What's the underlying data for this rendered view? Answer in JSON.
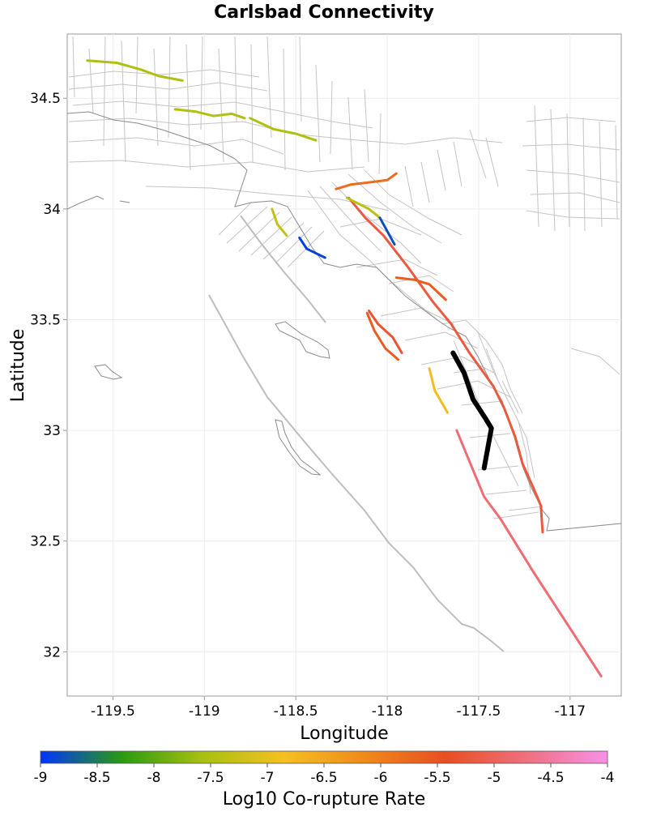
{
  "title": "Carlsbad Connectivity",
  "xlabel": "Longitude",
  "ylabel": "Latitude",
  "colorbar_label": "Log10 Co-rupture Rate",
  "x_ticks": [
    {
      "value": -119.5,
      "label": "-119.5"
    },
    {
      "value": -119,
      "label": "-119"
    },
    {
      "value": -118.5,
      "label": "-118.5"
    },
    {
      "value": -118,
      "label": "-118"
    },
    {
      "value": -117.5,
      "label": "-117.5"
    },
    {
      "value": -117,
      "label": "-117"
    }
  ],
  "y_ticks": [
    {
      "value": 34.5,
      "label": "34.5"
    },
    {
      "value": 34,
      "label": "34"
    },
    {
      "value": 33.5,
      "label": "33.5"
    },
    {
      "value": 33,
      "label": "33"
    },
    {
      "value": 32.5,
      "label": "32.5"
    },
    {
      "value": 32,
      "label": "32"
    }
  ],
  "colorbar_ticks": [
    {
      "value": -9,
      "label": "-9"
    },
    {
      "value": -8.5,
      "label": "-8.5"
    },
    {
      "value": -8,
      "label": "-8"
    },
    {
      "value": -7.5,
      "label": "-7.5"
    },
    {
      "value": -7,
      "label": "-7"
    },
    {
      "value": -6.5,
      "label": "-6.5"
    },
    {
      "value": -6,
      "label": "-6"
    },
    {
      "value": -5.5,
      "label": "-5.5"
    },
    {
      "value": -5,
      "label": "-5"
    },
    {
      "value": -4.5,
      "label": "-4.5"
    },
    {
      "value": -4,
      "label": "-4"
    }
  ],
  "colors": {
    "colorbar_stops": [
      "#0033ff",
      "#2a9a10",
      "#a8c010",
      "#f5c020",
      "#f08a1a",
      "#e84e20",
      "#f07080",
      "#f890e8"
    ],
    "highlight_fault": "#000000",
    "background_fault": "#c4c4c6",
    "coastline": "#8a8a8a"
  },
  "chart_data": {
    "type": "map",
    "title": "Carlsbad Connectivity",
    "xlabel": "Longitude",
    "ylabel": "Latitude",
    "xlim": [
      -119.75,
      -116.72
    ],
    "ylim": [
      31.8,
      34.79
    ],
    "colorbar": {
      "label": "Log10 Co-rupture Rate",
      "range": [
        -9,
        -4
      ]
    },
    "highlighted_fault": {
      "name": "Carlsbad",
      "trace": [
        [
          -117.64,
          33.35
        ],
        [
          -117.58,
          33.26
        ],
        [
          -117.53,
          33.14
        ],
        [
          -117.46,
          33.05
        ],
        [
          -117.43,
          33.01
        ],
        [
          -117.45,
          32.92
        ],
        [
          -117.47,
          32.83
        ]
      ]
    },
    "connected_faults": [
      {
        "rate": -4.8,
        "trace": [
          [
            -116.83,
            31.89
          ],
          [
            -117.2,
            32.36
          ],
          [
            -117.38,
            32.6
          ],
          [
            -117.47,
            32.7
          ],
          [
            -117.53,
            32.82
          ],
          [
            -117.62,
            33.0
          ]
        ]
      },
      {
        "rate": -5.2,
        "trace": [
          [
            -117.15,
            32.54
          ],
          [
            -117.16,
            32.66
          ],
          [
            -117.2,
            32.74
          ],
          [
            -117.26,
            32.85
          ],
          [
            -117.3,
            32.97
          ],
          [
            -117.36,
            33.1
          ],
          [
            -117.42,
            33.2
          ],
          [
            -117.55,
            33.35
          ],
          [
            -117.65,
            33.48
          ],
          [
            -117.75,
            33.58
          ],
          [
            -117.88,
            33.73
          ],
          [
            -118.02,
            33.88
          ],
          [
            -118.12,
            33.96
          ],
          [
            -118.21,
            34.05
          ]
        ]
      },
      {
        "rate": -5.3,
        "trace": [
          [
            -117.92,
            33.35
          ],
          [
            -117.97,
            33.42
          ],
          [
            -118.05,
            33.48
          ],
          [
            -118.1,
            33.54
          ]
        ]
      },
      {
        "rate": -5.6,
        "trace": [
          [
            -117.95,
            33.69
          ],
          [
            -117.85,
            33.68
          ],
          [
            -117.77,
            33.66
          ],
          [
            -117.68,
            33.59
          ]
        ]
      },
      {
        "rate": -5.6,
        "trace": [
          [
            -118.11,
            33.53
          ],
          [
            -118.07,
            33.45
          ],
          [
            -118.01,
            33.37
          ],
          [
            -117.94,
            33.32
          ]
        ]
      },
      {
        "rate": -5.8,
        "trace": [
          [
            -118.28,
            34.09
          ],
          [
            -118.2,
            34.11
          ],
          [
            -118.1,
            34.12
          ],
          [
            -118.0,
            34.13
          ],
          [
            -117.95,
            34.16
          ]
        ]
      },
      {
        "rate": -6.8,
        "trace": [
          [
            -117.77,
            33.28
          ],
          [
            -117.74,
            33.18
          ],
          [
            -117.67,
            33.08
          ]
        ]
      },
      {
        "rate": -7.5,
        "trace": [
          [
            -119.64,
            34.67
          ],
          [
            -119.48,
            34.66
          ],
          [
            -119.35,
            34.63
          ],
          [
            -119.25,
            34.6
          ],
          [
            -119.12,
            34.58
          ]
        ]
      },
      {
        "rate": -7.5,
        "trace": [
          [
            -119.16,
            34.45
          ],
          [
            -119.05,
            34.44
          ],
          [
            -118.95,
            34.42
          ],
          [
            -118.85,
            34.43
          ],
          [
            -118.78,
            34.41
          ]
        ]
      },
      {
        "rate": -7.5,
        "trace": [
          [
            -118.75,
            34.41
          ],
          [
            -118.62,
            34.36
          ],
          [
            -118.5,
            34.34
          ],
          [
            -118.39,
            34.31
          ]
        ]
      },
      {
        "rate": -7.3,
        "trace": [
          [
            -118.63,
            34.0
          ],
          [
            -118.6,
            33.93
          ],
          [
            -118.55,
            33.88
          ]
        ]
      },
      {
        "rate": -7.4,
        "trace": [
          [
            -118.22,
            34.05
          ],
          [
            -118.1,
            34.0
          ],
          [
            -118.04,
            33.96
          ]
        ]
      },
      {
        "rate": -8.8,
        "trace": [
          [
            -118.04,
            33.96
          ],
          [
            -117.96,
            33.84
          ]
        ]
      },
      {
        "rate": -8.9,
        "trace": [
          [
            -118.48,
            33.87
          ],
          [
            -118.44,
            33.82
          ],
          [
            -118.34,
            33.78
          ]
        ]
      }
    ],
    "background_faults": "UCERF3 subsection polygons and fault traces (drawn in light grey)",
    "coastline": "southern California coastline and Channel Islands (drawn in dark grey)"
  }
}
